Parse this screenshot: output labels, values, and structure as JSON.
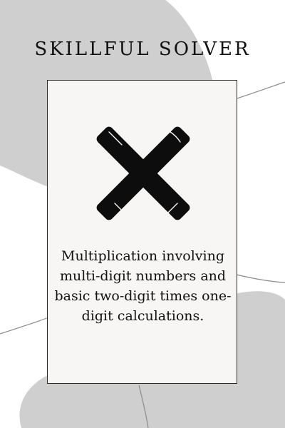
{
  "header": {
    "title": "SKILLFUL SOLVER"
  },
  "card": {
    "icon": "multiplication-x-icon",
    "description": "Multiplication involving multi-digit numbers and basic two-digit times one-digit calculations."
  },
  "colors": {
    "background": "#ffffff",
    "blob": "#cfcfcf",
    "card_background": "#f7f6f4",
    "card_border": "#2a2a2a",
    "text": "#111111",
    "icon": "#0d0d0d"
  }
}
